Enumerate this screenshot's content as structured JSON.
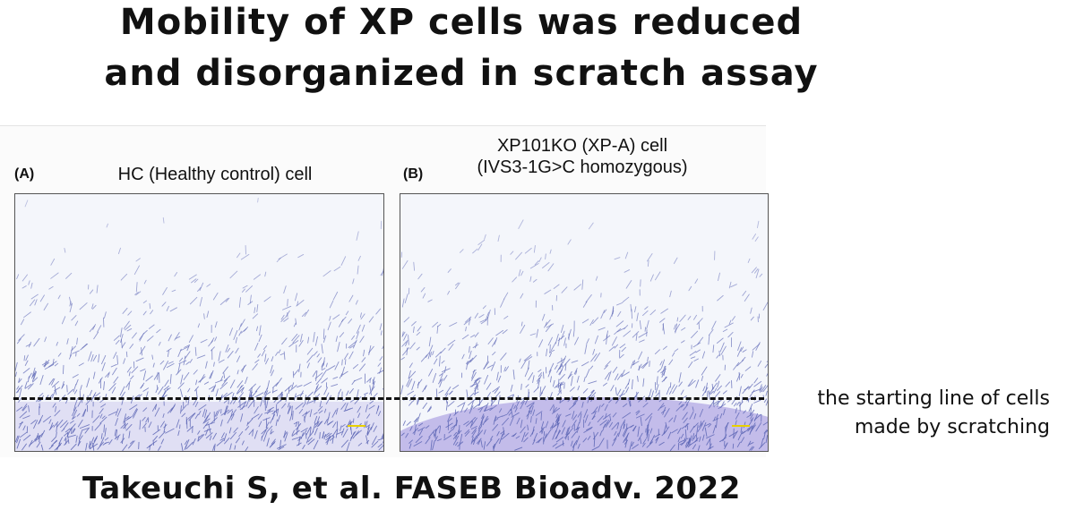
{
  "title": {
    "line1": "Mobility of XP cells was reduced",
    "line2": "and disorganized in scratch assay"
  },
  "panels": [
    {
      "letter": "(A)",
      "title_line1": "HC (Healthy control) cell",
      "title_line2": ""
    },
    {
      "letter": "(B)",
      "title_line1": "XP101KO (XP-A) cell",
      "title_line2": "(IVS3-1G>C homozygous)"
    }
  ],
  "annotation": {
    "line1": "the starting line of cells",
    "line2": "made by scratching"
  },
  "citation": "Takeuchi S, et al. FASEB Bioadv. 2022",
  "colors": {
    "cell_stain": "#5a64b4",
    "dense_region": "#9a8cdc",
    "scale_bar": "#e8d000",
    "dashed_line": "#111111"
  }
}
